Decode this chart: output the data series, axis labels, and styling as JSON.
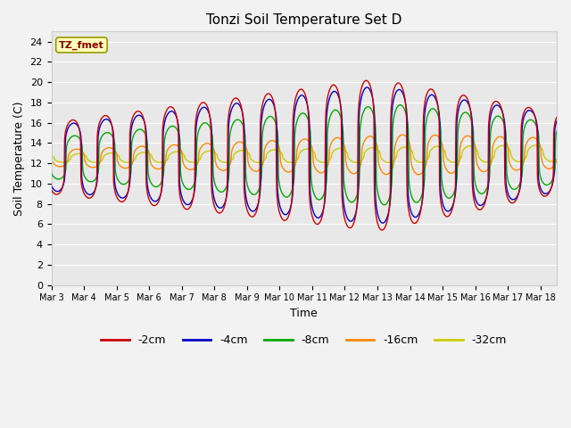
{
  "title": "Tonzi Soil Temperature Set D",
  "xlabel": "Time",
  "ylabel": "Soil Temperature (C)",
  "legend_label": "TZ_fmet",
  "series_labels": [
    "-2cm",
    "-4cm",
    "-8cm",
    "-16cm",
    "-32cm"
  ],
  "series_colors": [
    "#cc0000",
    "#0000cc",
    "#00aa00",
    "#ff8800",
    "#cccc00"
  ],
  "ylim": [
    0,
    25
  ],
  "yticks": [
    0,
    2,
    4,
    6,
    8,
    10,
    12,
    14,
    16,
    18,
    20,
    22,
    24
  ],
  "bg_color": "#e8e8e8",
  "grid_color": "#ffffff",
  "title_fontsize": 11,
  "axis_fontsize": 9,
  "tick_fontsize": 8,
  "n_days": 15.5,
  "figsize": [
    6.4,
    4.8
  ],
  "dpi": 100
}
